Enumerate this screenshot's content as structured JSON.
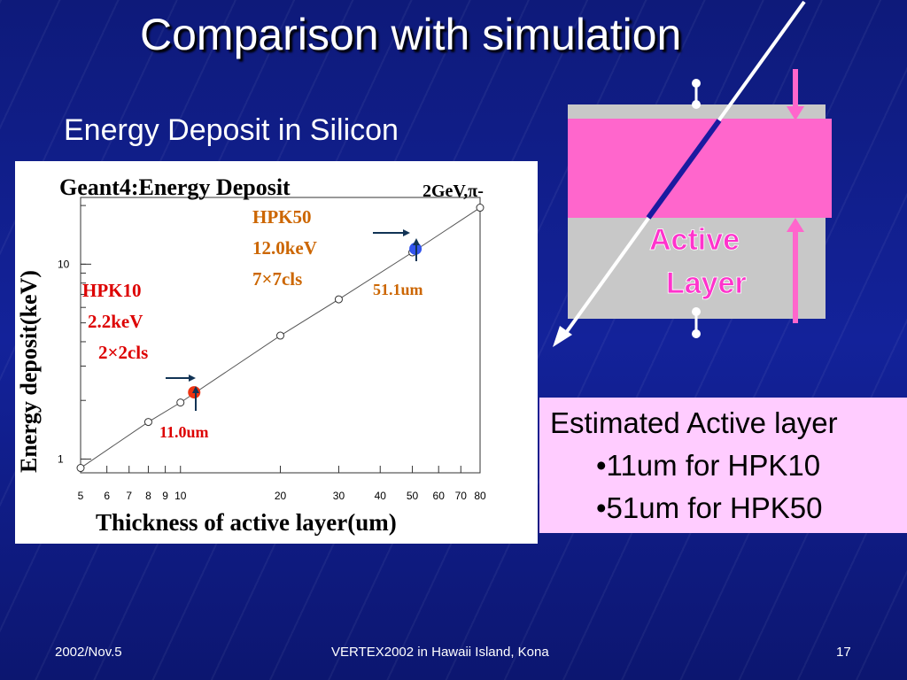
{
  "slide": {
    "title": "Comparison with simulation",
    "subtitle": "Energy Deposit in Silicon"
  },
  "chart_data": {
    "type": "scatter",
    "scale": "log-log",
    "title": "Geant4:Energy Deposit",
    "beam_label": "2GeV,π-",
    "xlabel": "Thickness of active layer(um)",
    "ylabel": "Energy deposit(keV)",
    "xlim": [
      5,
      80
    ],
    "ylim": [
      0.85,
      22
    ],
    "xticks": [
      "5",
      "6",
      "7",
      "8",
      "9",
      "10",
      "20",
      "30",
      "40",
      "50",
      "60",
      "70",
      "80"
    ],
    "xtick_values": [
      5,
      6,
      7,
      8,
      9,
      10,
      20,
      30,
      40,
      50,
      60,
      70,
      80
    ],
    "yticks": [
      "1",
      "10"
    ],
    "ytick_values": [
      1,
      10
    ],
    "grid": false,
    "series": [
      {
        "x": [
          5,
          8,
          10,
          20,
          30,
          50,
          80
        ],
        "y": [
          0.9,
          1.55,
          1.95,
          4.3,
          6.6,
          11.5,
          19.5
        ]
      }
    ],
    "highlights": [
      {
        "thickness_label": "11.0um",
        "x": 11.0,
        "y": 2.2,
        "color": "#ee3311",
        "label_lines": [
          "HPK10",
          "2.2keV",
          "2×2cls"
        ],
        "text_color": "#dd0000"
      },
      {
        "thickness_label": "51.1um",
        "x": 51.1,
        "y": 12.0,
        "color": "#3355ee",
        "label_lines": [
          "HPK50",
          "12.0keV",
          "7×7cls"
        ],
        "text_color": "#cc6600"
      }
    ]
  },
  "diagram": {
    "label_line1": "Active",
    "label_line2": "Layer",
    "colors": {
      "substrate": "#c8c8c8",
      "active_layer": "#ff66cc",
      "arrows": "#ff66cc",
      "track": "#ffffff",
      "track_inside": "#1a1aa0",
      "label": "#ff33cc"
    }
  },
  "estimate": {
    "heading": "Estimated Active layer",
    "items": [
      "•11um for HPK10",
      "•51um for HPK50"
    ]
  },
  "footer": {
    "date": "2002/Nov.5",
    "conference": "VERTEX2002 in Hawaii Island, Kona",
    "page": "17"
  }
}
